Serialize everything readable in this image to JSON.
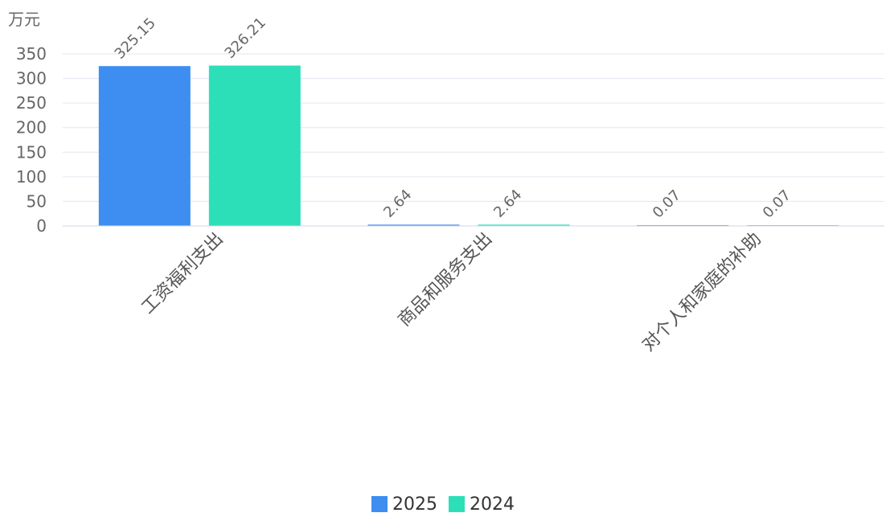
{
  "chart_data": {
    "type": "bar",
    "unit": "万元",
    "categories": [
      "工资福利支出",
      "商品和服务支出",
      "对个人和家庭的补助"
    ],
    "series": [
      {
        "name": "2025",
        "values": [
          325.15,
          2.64,
          0.07
        ],
        "labels": [
          "325.15",
          "2.64",
          "0.07"
        ],
        "color": "#3d8ef0"
      },
      {
        "name": "2024",
        "values": [
          326.21,
          2.64,
          0.07
        ],
        "labels": [
          "326.21",
          "2.64",
          "0.07"
        ],
        "color": "#2ddfb9"
      }
    ],
    "ylim": [
      0,
      350
    ],
    "yticks": [
      "0",
      "50",
      "100",
      "150",
      "200",
      "250",
      "300",
      "350"
    ],
    "grid": true,
    "legend_position": "bottom-center"
  }
}
